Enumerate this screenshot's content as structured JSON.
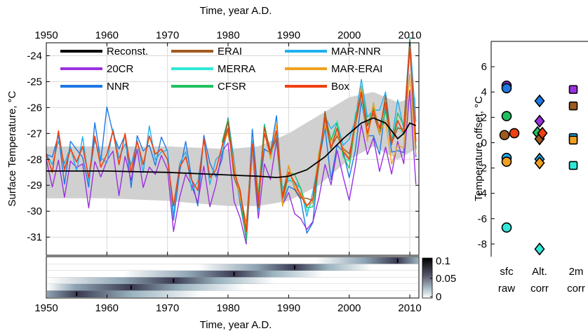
{
  "chart_data": [
    {
      "type": "line",
      "xlabel_top": "Time, year A.D.",
      "xlabel": "Time, year A.D.",
      "ylabel": "Surface Temperature, °C",
      "xlim": [
        1950,
        2011.5
      ],
      "ylim": [
        -31.7,
        -23.5
      ],
      "xticks": [
        1950,
        1960,
        1970,
        1980,
        1990,
        2000,
        2010
      ],
      "yticks": [
        -24,
        -25,
        -26,
        -27,
        -28,
        -29,
        -30,
        -31
      ],
      "grid": true,
      "legend_position": "top",
      "legend": [
        {
          "name": "Reconst.",
          "color": "#000000"
        },
        {
          "name": "ERAI",
          "color": "#a05a1e"
        },
        {
          "name": "MAR-NNR",
          "color": "#20b0f0"
        },
        {
          "name": "20CR",
          "color": "#9b30e0"
        },
        {
          "name": "MERRA",
          "color": "#30e8d8"
        },
        {
          "name": "MAR-ERAI",
          "color": "#f0a020"
        },
        {
          "name": "NNR",
          "color": "#1e78e6"
        },
        {
          "name": "CFSR",
          "color": "#20c060"
        },
        {
          "name": "Box",
          "color": "#f04010"
        }
      ],
      "uncertainty_band": {
        "x": [
          1950,
          1960,
          1970,
          1980,
          1985,
          1990,
          1995,
          2000,
          2004,
          2008,
          2011
        ],
        "upper": [
          -27.5,
          -27.5,
          -27.5,
          -27.6,
          -27.5,
          -27.0,
          -26.3,
          -25.6,
          -25.4,
          -25.8,
          -25.6
        ],
        "lower": [
          -29.5,
          -29.5,
          -29.6,
          -29.8,
          -29.8,
          -29.6,
          -29.0,
          -28.0,
          -27.5,
          -28.0,
          -27.6
        ]
      },
      "series": [
        {
          "name": "Reconst.",
          "x": [
            1950,
            1960,
            1970,
            1975,
            1980,
            1985,
            1988,
            1990,
            1993,
            1996,
            1999,
            2002,
            2004,
            2006,
            2008,
            2009,
            2010,
            2011
          ],
          "y": [
            -28.45,
            -28.45,
            -28.5,
            -28.55,
            -28.6,
            -28.65,
            -28.7,
            -28.65,
            -28.4,
            -27.9,
            -27.2,
            -26.6,
            -26.4,
            -26.6,
            -27.2,
            -27.0,
            -26.6,
            -26.7
          ]
        },
        {
          "name": "Box",
          "x": [
            1950,
            1951,
            1952,
            1953,
            1954,
            1955,
            1956,
            1957,
            1958,
            1959,
            1960,
            1961,
            1962,
            1963,
            1964,
            1965,
            1966,
            1967,
            1968,
            1969,
            1970,
            1971,
            1972,
            1973,
            1974,
            1975,
            1976,
            1977,
            1978,
            1979,
            1980,
            1981,
            1982,
            1983,
            1984,
            1985,
            1986,
            1987,
            1988,
            1989,
            1990,
            1991,
            1992,
            1993,
            1994,
            1995,
            1996,
            1997,
            1998,
            1999,
            2000,
            2001,
            2002,
            2003,
            2004,
            2005,
            2006,
            2007,
            2008,
            2009,
            2010,
            2011
          ],
          "y": [
            -27.8,
            -28.5,
            -26.9,
            -28.4,
            -27.6,
            -28.1,
            -27.5,
            -28.7,
            -27.1,
            -28.3,
            -27.8,
            -26.9,
            -28.2,
            -27.0,
            -28.5,
            -27.3,
            -28.2,
            -27.1,
            -27.8,
            -27.6,
            -28.0,
            -29.8,
            -28.3,
            -27.9,
            -28.8,
            -29.2,
            -27.2,
            -28.7,
            -28.4,
            -27.5,
            -26.8,
            -28.5,
            -29.2,
            -30.8,
            -27.4,
            -29.6,
            -27.0,
            -27.8,
            -26.9,
            -29.5,
            -28.5,
            -28.9,
            -29.4,
            -29.8,
            -29.5,
            -28.0,
            -26.4,
            -27.6,
            -26.8,
            -27.7,
            -28.0,
            -26.5,
            -25.4,
            -27.0,
            -26.1,
            -26.8,
            -25.8,
            -27.4,
            -26.5,
            -27.0,
            -23.6,
            -27.3
          ]
        }
      ]
    },
    {
      "type": "heatmap",
      "colorbar_ticks": [
        "0.1",
        "0.05",
        "0"
      ],
      "rows": 6,
      "row_peaks": [
        2008,
        1991,
        1981,
        1971,
        1964,
        1955
      ]
    },
    {
      "type": "scatter",
      "ylabel": "Temperature offset, °C",
      "ylim": [
        -9,
        8
      ],
      "yticks": [
        6,
        4,
        2,
        0,
        -2,
        -4,
        -6,
        -8
      ],
      "categories": [
        {
          "line1": "sfc",
          "line2": "raw"
        },
        {
          "line1": "Alt.",
          "line2": "corr"
        },
        {
          "line1": "2m",
          "line2": "corr"
        }
      ],
      "series": [
        {
          "name": "20CR",
          "shape": "circle",
          "category": 0,
          "value": 4.5,
          "color": "#9b30e0"
        },
        {
          "name": "NNR",
          "shape": "circle",
          "category": 0,
          "value": 4.3,
          "color": "#1e78e6"
        },
        {
          "name": "CFSR",
          "shape": "circle",
          "category": 0,
          "value": 2.1,
          "color": "#20c060"
        },
        {
          "name": "ERAI",
          "shape": "circle",
          "category": 0,
          "value": 0.6,
          "color": "#a05a1e"
        },
        {
          "name": "Box",
          "shape": "circle",
          "category": 0,
          "value": 0.75,
          "color": "#f04010"
        },
        {
          "name": "MAR-NNR",
          "shape": "circle",
          "category": 0,
          "value": -1.2,
          "color": "#20b0f0"
        },
        {
          "name": "MAR-ERAI",
          "shape": "circle",
          "category": 0,
          "value": -1.5,
          "color": "#f0a020"
        },
        {
          "name": "MERRA",
          "shape": "circle",
          "category": 0,
          "value": -6.7,
          "color": "#30e8d8"
        },
        {
          "name": "NNR",
          "shape": "diamond",
          "category": 1,
          "value": 3.3,
          "color": "#1e78e6"
        },
        {
          "name": "20CR",
          "shape": "diamond",
          "category": 1,
          "value": 1.7,
          "color": "#9b30e0"
        },
        {
          "name": "CFSR",
          "shape": "diamond",
          "category": 1,
          "value": 0.8,
          "color": "#20c060"
        },
        {
          "name": "ERAI",
          "shape": "diamond",
          "category": 1,
          "value": 0.3,
          "color": "#a05a1e"
        },
        {
          "name": "Box",
          "shape": "diamond",
          "category": 1,
          "value": 0.75,
          "color": "#f04010"
        },
        {
          "name": "MAR-NNR",
          "shape": "diamond",
          "category": 1,
          "value": -1.3,
          "color": "#20b0f0"
        },
        {
          "name": "MAR-ERAI",
          "shape": "diamond",
          "category": 1,
          "value": -1.6,
          "color": "#f0a020"
        },
        {
          "name": "MERRA",
          "shape": "diamond",
          "category": 1,
          "value": -8.4,
          "color": "#30e8d8"
        },
        {
          "name": "20CR",
          "shape": "square",
          "category": 2,
          "value": 4.2,
          "color": "#9b30e0"
        },
        {
          "name": "ERAI",
          "shape": "square",
          "category": 2,
          "value": 2.9,
          "color": "#a05a1e"
        },
        {
          "name": "MAR-NNR",
          "shape": "square",
          "category": 2,
          "value": 0.4,
          "color": "#20b0f0"
        },
        {
          "name": "MAR-ERAI",
          "shape": "square",
          "category": 2,
          "value": 0.2,
          "color": "#f0a020"
        },
        {
          "name": "MERRA",
          "shape": "square",
          "category": 2,
          "value": -1.8,
          "color": "#30e8d8"
        }
      ]
    }
  ]
}
